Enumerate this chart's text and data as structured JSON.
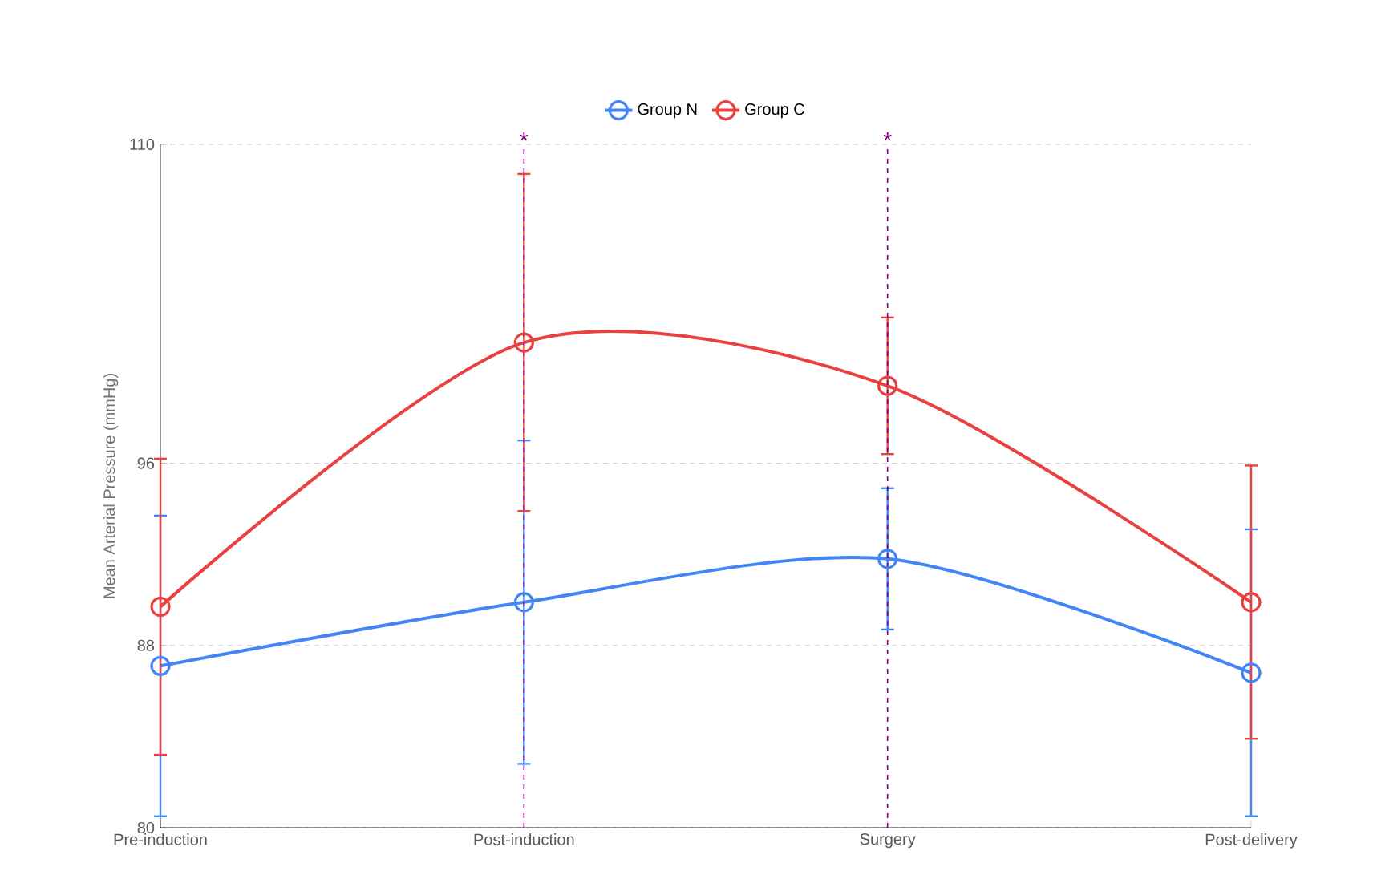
{
  "chart_data": {
    "type": "line",
    "ylabel": "Mean Arterial Pressure (mmHg)",
    "categories": [
      "Pre-induction",
      "Post-induction",
      "Surgery",
      "Post-delivery"
    ],
    "series": [
      {
        "name": "Group N",
        "color": "#4285f4",
        "values": [
          87.1,
          89.9,
          91.8,
          86.8
        ],
        "errors": [
          6.6,
          7.1,
          3.1,
          6.3
        ]
      },
      {
        "name": "Group C",
        "color": "#e8413f",
        "values": [
          89.7,
          101.3,
          99.4,
          89.9
        ],
        "errors": [
          6.5,
          7.4,
          3.0,
          6.0
        ]
      }
    ],
    "ylim": [
      80,
      110
    ],
    "yticks": [
      80,
      88,
      96,
      110
    ],
    "ref_lines": [
      {
        "axis": "x",
        "value": "Post-induction",
        "color": "#800080",
        "line_style": "dashed"
      },
      {
        "axis": "x",
        "value": "Surgery",
        "color": "#800080",
        "line_style": "dashed"
      }
    ],
    "annotations": [
      {
        "text": "*",
        "x": "Post-induction",
        "y": 110
      },
      {
        "text": "*",
        "x": "Surgery",
        "y": 110
      }
    ],
    "grid": "y",
    "legend": "top",
    "marker": "circle",
    "line_style": "solid"
  }
}
